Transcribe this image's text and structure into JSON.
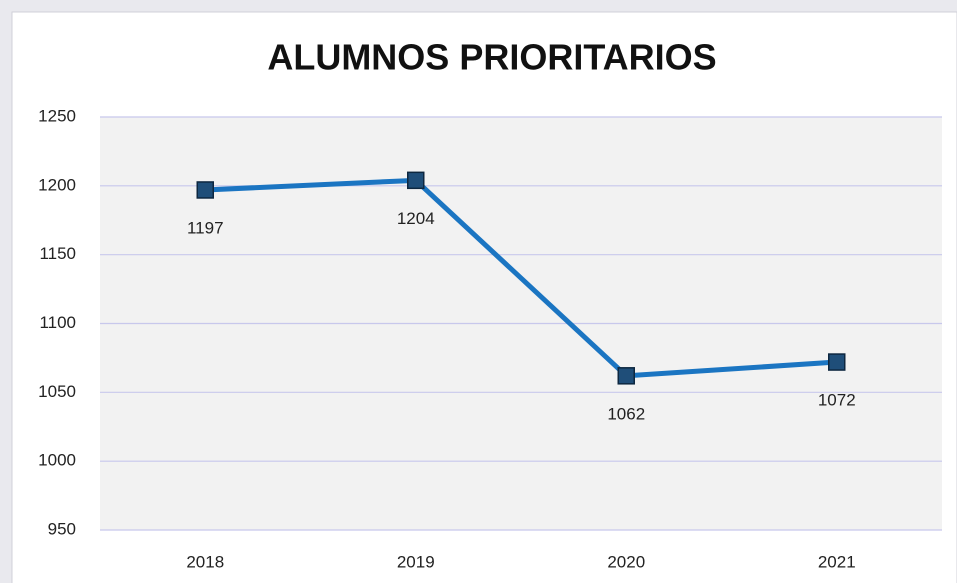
{
  "chart_data": {
    "type": "line",
    "title": "ALUMNOS PRIORITARIOS",
    "categories": [
      "2018",
      "2019",
      "2020",
      "2021"
    ],
    "series": [
      {
        "name": "Alumnos prioritarios",
        "color": "#1b75c2",
        "marker_color": "#1f4e79",
        "values": [
          1197,
          1204,
          1062,
          1072
        ]
      }
    ],
    "ylim": [
      950,
      1250
    ],
    "yticks": [
      950,
      1000,
      1050,
      1100,
      1150,
      1200,
      1250
    ],
    "grid": true
  }
}
